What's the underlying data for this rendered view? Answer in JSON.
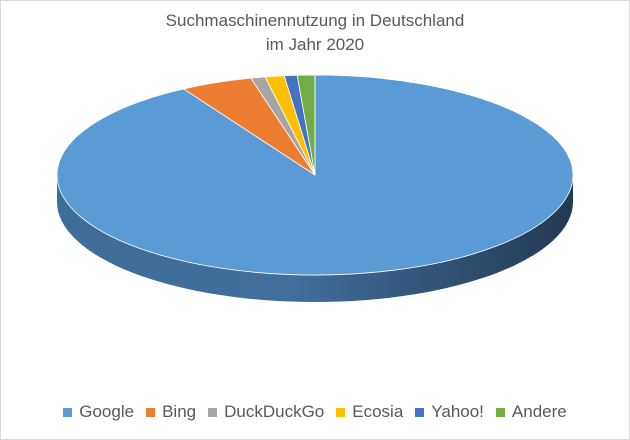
{
  "chart_data": {
    "type": "pie",
    "title": "Suchmaschinennutzung in Deutschland",
    "subtitle": "im Jahr 2020",
    "categories": [
      "Google",
      "Bing",
      "DuckDuckGo",
      "Ecosia",
      "Yahoo!",
      "Andere"
    ],
    "values": [
      91.5,
      4.5,
      0.9,
      1.2,
      0.8,
      1.1
    ],
    "unit": "%",
    "colors": [
      "#5B9BD5",
      "#ED7D31",
      "#A5A5A5",
      "#FFC000",
      "#4472C4",
      "#70AD47"
    ],
    "legend_position": "bottom",
    "style": "3d"
  }
}
